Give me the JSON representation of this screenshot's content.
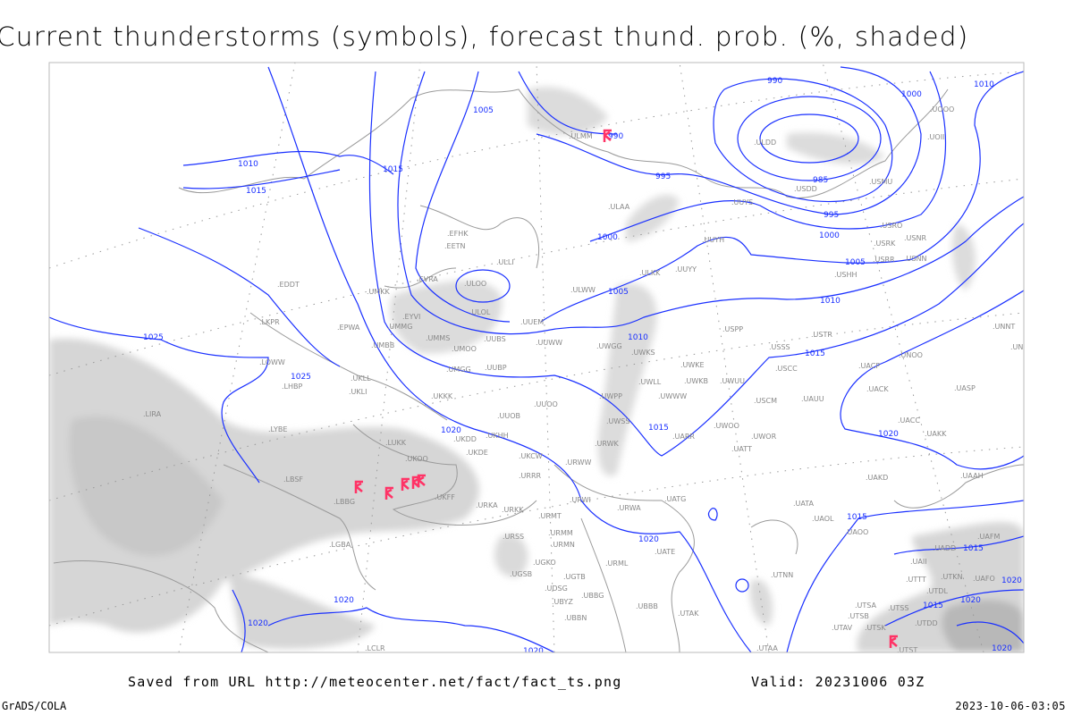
{
  "header": {
    "title": "Current thunderstorms (symbols), forecast thund. prob. (%, shaded)"
  },
  "footer": {
    "saved": "Saved from URL http://meteocenter.net/fact/fact_ts.png",
    "valid": "Valid: 20231006 03Z",
    "software": "GrADS/COLA",
    "generated": "2023-10-06-03:05"
  },
  "colors": {
    "isobar": "#1a30ff",
    "thunderstorm_symbol": "#ff3366",
    "probability_shading": "#d0d0d0",
    "station_label": "#888888",
    "coastline": "#9a9a9a"
  },
  "icons": {
    "thunderstorm": "thunderstorm-symbol-icon"
  },
  "stations": [
    ".ULMM",
    ".ULDD",
    ".USDD",
    ".USMU",
    ".UOOO",
    ".UOII",
    ".ULAA",
    ".UUYS",
    ".USRO",
    ".USRK",
    ".USNR",
    ".USRR",
    ".USNN",
    ".USHH",
    ".UUYH",
    ".ULKK",
    ".UUYY",
    ".ULWW",
    ".USPP",
    ".USTR",
    ".USSS",
    ".USCC",
    ".UACP",
    ".UNOO",
    ".UNNT",
    ".UNBB",
    ".UWKE",
    ".UWKB",
    ".UWUU",
    ".UWLL",
    ".UWWW",
    ".UWPP",
    ".USCM",
    ".UAUU",
    ".UACK",
    ".UASP",
    ".UACC",
    ".UAKK",
    ".UWSS",
    ".UARR",
    ".UWOO",
    ".UWOR",
    ".UATT",
    ".URWK",
    ".URWW",
    ".UAKD",
    ".UAAH",
    ".UATG",
    ".URWA",
    ".UATA",
    ".UAOL",
    ".UAOO",
    ".UATE",
    ".URML",
    ".UBBB",
    ".UTAK",
    ".UTNN",
    ".UTAA",
    ".UAFM",
    ".UADD",
    ".UAII",
    ".UTTT",
    ".UTKN",
    ".UAFO",
    ".UTDL",
    ".UTSA",
    ".UTSS",
    ".UTSB",
    ".UTAV",
    ".UTSK",
    ".UTDD",
    ".UTST",
    ".EDDT",
    ".LKPR",
    ".UMKK",
    ".EVRA",
    ".ULOO",
    ".ULOL",
    ".EYVI",
    ".UMMG",
    ".EPWA",
    ".UMBB",
    ".UMMS",
    ".UMOO",
    ".UUBS",
    ".UUEM",
    ".UUWW",
    ".UWGG",
    ".UWKS",
    ".LOWW",
    ".UKLL",
    ".LHBP",
    ".UKLI",
    ".UMGG",
    ".UUBP",
    ".UKKK",
    ".UUOO",
    ".UUOB",
    ".UKHH",
    ".UKDD",
    ".UKDE",
    ".LUKK",
    ".UKCW",
    ".URRR",
    ".LIRA",
    ".LYBE",
    ".LBSF",
    ".LBBG",
    ".UKOO",
    ".UKFF",
    ".URKA",
    ".URKK",
    ".URMT",
    ".URSS",
    ".URMM",
    ".URMN",
    ".UGKO",
    ".UGSB",
    ".UGTB",
    ".UDSG",
    ".UBBG",
    ".UBYZ",
    ".UBBN",
    ".LGBA",
    ".LCLR",
    ".URWI",
    ".ULLI",
    ".EFHK",
    ".EETN"
  ],
  "isobar_labels": [
    "990",
    "990",
    "995",
    "995",
    "985",
    "1000",
    "1000",
    "1000",
    "1010",
    "1005",
    "1005",
    "1005",
    "1010",
    "1010",
    "1015",
    "1015",
    "1010",
    "1015",
    "1015",
    "1020",
    "1025",
    "1025",
    "1020",
    "1020",
    "1015",
    "1015",
    "1020",
    "1015",
    "1020",
    "1020",
    "1020",
    "1020",
    "1020"
  ]
}
